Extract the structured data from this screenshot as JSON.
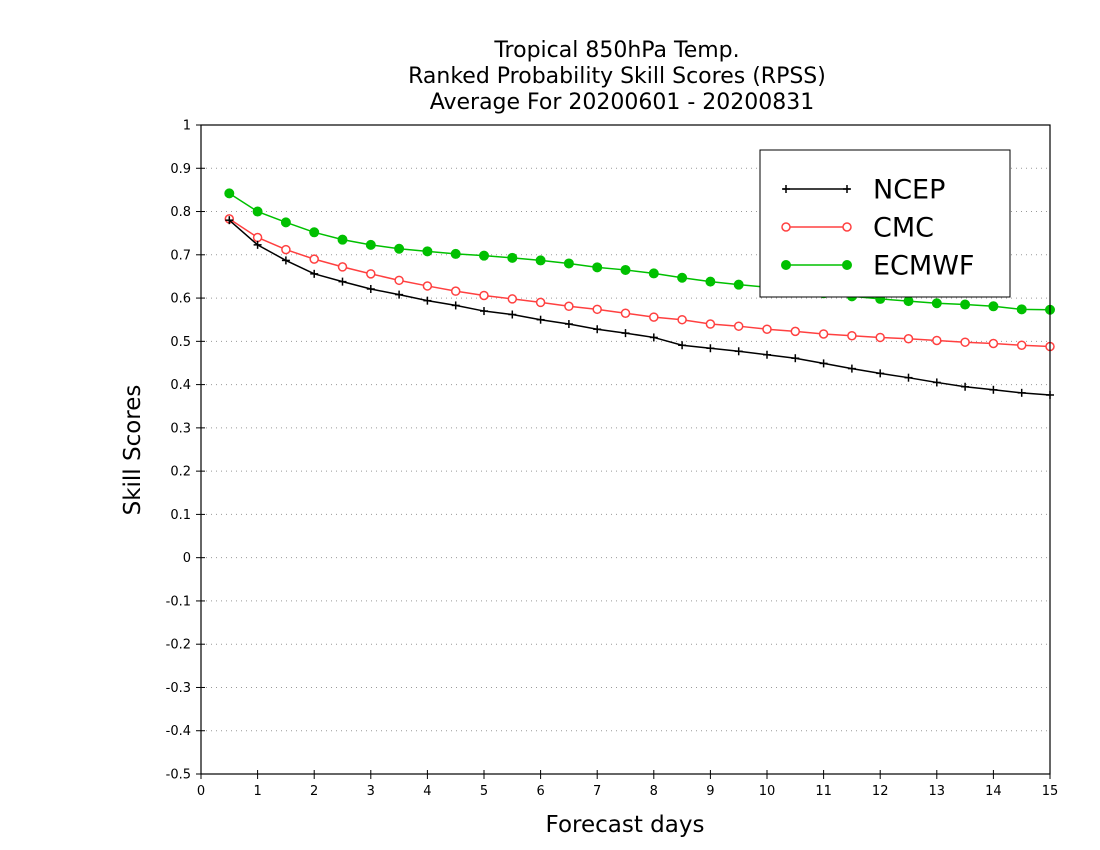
{
  "chart_data": {
    "type": "line",
    "title_lines": [
      "Tropical 850hPa Temp.",
      "Ranked Probability Skill Scores (RPSS)",
      "Average For 20200601 - 20200831"
    ],
    "xlabel": "Forecast days",
    "ylabel": "Skill Scores",
    "xlim": [
      0,
      15
    ],
    "ylim": [
      -0.5,
      1
    ],
    "xticks": [
      "0",
      "1",
      "2",
      "3",
      "4",
      "5",
      "6",
      "7",
      "8",
      "9",
      "10",
      "11",
      "12",
      "13",
      "14",
      "15"
    ],
    "yticks": [
      "1",
      "0.9",
      "0.8",
      "0.7",
      "0.6",
      "0.5",
      "0.4",
      "0.3",
      "0.2",
      "0.1",
      "0",
      "-0.1",
      "-0.2",
      "-0.3",
      "-0.4",
      "-0.5"
    ],
    "grid": "horizontal-dotted",
    "legend_position": "top-right",
    "x": [
      0.5,
      1,
      1.5,
      2,
      2.5,
      3,
      3.5,
      4,
      4.5,
      5,
      5.5,
      6,
      6.5,
      7,
      7.5,
      8,
      8.5,
      9,
      9.5,
      10,
      10.5,
      11,
      11.5,
      12,
      12.5,
      13,
      13.5,
      14,
      14.5,
      15
    ],
    "series": [
      {
        "name": "NCEP",
        "color": "#000000",
        "marker": "plus",
        "values": [
          0.78,
          0.723,
          0.687,
          0.656,
          0.638,
          0.621,
          0.608,
          0.594,
          0.583,
          0.57,
          0.562,
          0.55,
          0.54,
          0.528,
          0.519,
          0.509,
          0.491,
          0.484,
          0.477,
          0.469,
          0.461,
          0.449,
          0.437,
          0.426,
          0.416,
          0.405,
          0.395,
          0.388,
          0.381,
          0.376
        ]
      },
      {
        "name": "CMC",
        "color": "#ff4040",
        "marker": "open-circle",
        "values": [
          0.783,
          0.74,
          0.712,
          0.69,
          0.672,
          0.656,
          0.641,
          0.628,
          0.616,
          0.606,
          0.598,
          0.59,
          0.581,
          0.574,
          0.565,
          0.556,
          0.55,
          0.54,
          0.535,
          0.528,
          0.523,
          0.517,
          0.513,
          0.509,
          0.506,
          0.502,
          0.498,
          0.495,
          0.491,
          0.488
        ]
      },
      {
        "name": "ECMWF",
        "color": "#00c000",
        "marker": "filled-circle",
        "values": [
          0.842,
          0.8,
          0.775,
          0.752,
          0.735,
          0.723,
          0.714,
          0.708,
          0.702,
          0.698,
          0.693,
          0.687,
          0.68,
          0.671,
          0.665,
          0.657,
          0.647,
          0.638,
          0.631,
          0.625,
          0.618,
          0.611,
          0.604,
          0.598,
          0.593,
          0.588,
          0.585,
          0.581,
          0.574,
          0.573
        ]
      }
    ]
  }
}
